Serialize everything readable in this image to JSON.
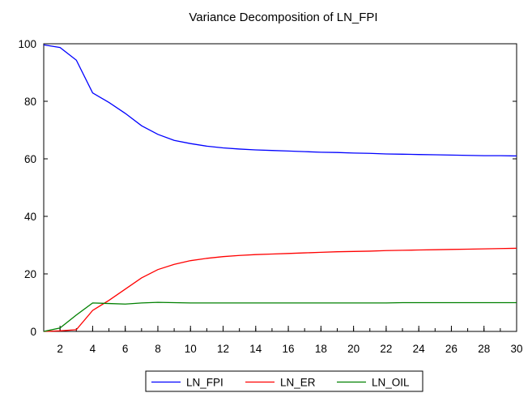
{
  "chart_data": {
    "type": "line",
    "title": "Variance Decomposition of LN_FPI",
    "xlabel": "",
    "ylabel": "",
    "xlim": [
      1,
      30
    ],
    "ylim": [
      0,
      100
    ],
    "yticks": [
      0,
      20,
      40,
      60,
      80,
      100
    ],
    "xticks": [
      2,
      4,
      6,
      8,
      10,
      12,
      14,
      16,
      18,
      20,
      22,
      24,
      26,
      28,
      30
    ],
    "grid": false,
    "legend_position": "bottom-center",
    "x": [
      1,
      2,
      3,
      4,
      5,
      6,
      7,
      8,
      9,
      10,
      11,
      12,
      13,
      14,
      15,
      16,
      17,
      18,
      19,
      20,
      21,
      22,
      23,
      24,
      25,
      26,
      27,
      28,
      29,
      30
    ],
    "series": [
      {
        "name": "LN_FPI",
        "color": "#0000ff",
        "values": [
          99.6,
          98.7,
          94.3,
          82.9,
          79.6,
          75.8,
          71.5,
          68.5,
          66.4,
          65.3,
          64.4,
          63.8,
          63.4,
          63.1,
          62.9,
          62.7,
          62.5,
          62.3,
          62.2,
          62.0,
          61.9,
          61.7,
          61.6,
          61.5,
          61.4,
          61.3,
          61.2,
          61.1,
          61.1,
          61.0
        ]
      },
      {
        "name": "LN_ER",
        "color": "#ff0000",
        "values": [
          0.0,
          0.2,
          0.6,
          7.3,
          10.8,
          14.7,
          18.6,
          21.5,
          23.3,
          24.6,
          25.4,
          26.0,
          26.4,
          26.7,
          26.9,
          27.1,
          27.3,
          27.5,
          27.7,
          27.8,
          27.9,
          28.1,
          28.2,
          28.3,
          28.4,
          28.5,
          28.6,
          28.7,
          28.8,
          28.9
        ]
      },
      {
        "name": "LN_OIL",
        "color": "#008000",
        "values": [
          0.0,
          1.2,
          5.7,
          9.9,
          9.7,
          9.5,
          9.9,
          10.1,
          10.0,
          9.9,
          9.9,
          9.9,
          9.9,
          9.9,
          9.9,
          9.9,
          9.9,
          9.9,
          9.9,
          9.9,
          9.9,
          9.9,
          10.0,
          10.0,
          10.0,
          10.0,
          10.0,
          10.0,
          10.0,
          10.0
        ]
      }
    ]
  }
}
